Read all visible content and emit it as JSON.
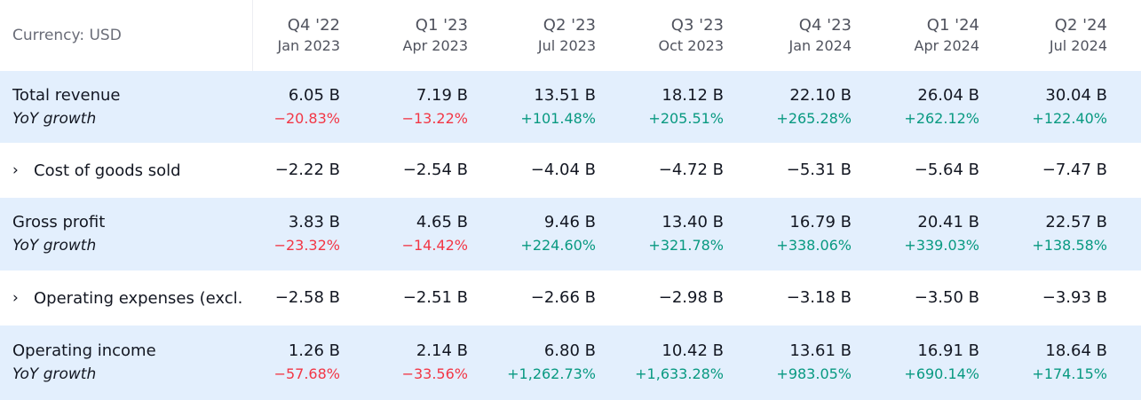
{
  "header": {
    "currency_label": "Currency: USD",
    "periods": [
      {
        "quarter": "Q4 '22",
        "date": "Jan 2023"
      },
      {
        "quarter": "Q1 '23",
        "date": "Apr 2023"
      },
      {
        "quarter": "Q2 '23",
        "date": "Jul 2023"
      },
      {
        "quarter": "Q3 '23",
        "date": "Oct 2023"
      },
      {
        "quarter": "Q4 '23",
        "date": "Jan 2024"
      },
      {
        "quarter": "Q1 '24",
        "date": "Apr 2024"
      },
      {
        "quarter": "Q2 '24",
        "date": "Jul 2024"
      }
    ]
  },
  "rows": {
    "total_revenue": {
      "label": "Total revenue",
      "sub_label": "YoY growth",
      "values": [
        "6.05 B",
        "7.19 B",
        "13.51 B",
        "18.12 B",
        "22.10 B",
        "26.04 B",
        "30.04 B"
      ],
      "growth": [
        "−20.83%",
        "−13.22%",
        "+101.48%",
        "+205.51%",
        "+265.28%",
        "+262.12%",
        "+122.40%"
      ]
    },
    "cost_of_goods_sold": {
      "chevron": "›",
      "label": "Cost of goods sold",
      "values": [
        "−2.22 B",
        "−2.54 B",
        "−4.04 B",
        "−4.72 B",
        "−5.31 B",
        "−5.64 B",
        "−7.47 B"
      ]
    },
    "gross_profit": {
      "label": "Gross profit",
      "sub_label": "YoY growth",
      "values": [
        "3.83 B",
        "4.65 B",
        "9.46 B",
        "13.40 B",
        "16.79 B",
        "20.41 B",
        "22.57 B"
      ],
      "growth": [
        "−23.32%",
        "−14.42%",
        "+224.60%",
        "+321.78%",
        "+338.06%",
        "+339.03%",
        "+138.58%"
      ]
    },
    "operating_expenses": {
      "chevron": "›",
      "label": "Operating expenses (excl.",
      "values": [
        "−2.58 B",
        "−2.51 B",
        "−2.66 B",
        "−2.98 B",
        "−3.18 B",
        "−3.50 B",
        "−3.93 B"
      ]
    },
    "operating_income": {
      "label": "Operating income",
      "sub_label": "YoY growth",
      "values": [
        "1.26 B",
        "2.14 B",
        "6.80 B",
        "10.42 B",
        "13.61 B",
        "16.91 B",
        "18.64 B"
      ],
      "growth": [
        "−57.68%",
        "−33.56%",
        "+1,262.73%",
        "+1,633.28%",
        "+983.05%",
        "+690.14%",
        "+174.15%"
      ]
    }
  },
  "colors": {
    "negative": "#f23645",
    "positive": "#089981",
    "row_highlight": "#e3effd"
  }
}
